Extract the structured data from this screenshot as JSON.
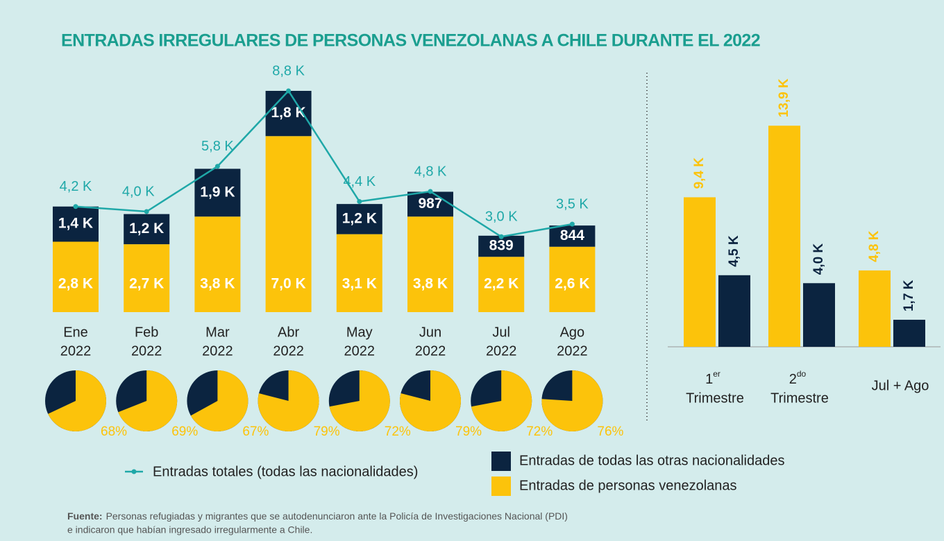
{
  "title": "ENTRADAS IRREGULARES DE PERSONAS VENEZOLANAS A CHILE DURANTE EL 2022",
  "source": {
    "label": "Fuente:",
    "lines": [
      "Personas refugiadas y migrantes que se autodenunciaron ante la Policía de Investigaciones Nacional (PDI)",
      "e indicaron que habían ingresado irregularmente a Chile."
    ]
  },
  "chart_data": [
    {
      "type": "stacked-bar-line",
      "categories": [
        [
          "Ene",
          "2022"
        ],
        [
          "Feb",
          "2022"
        ],
        [
          "Mar",
          "2022"
        ],
        [
          "Abr",
          "2022"
        ],
        [
          "May",
          "2022"
        ],
        [
          "Jun",
          "2022"
        ],
        [
          "Jul",
          "2022"
        ],
        [
          "Ago",
          "2022"
        ]
      ],
      "ylim": [
        0,
        10000
      ],
      "series": [
        {
          "name": "Entradas de personas venezolanas",
          "color": "#fcc30b",
          "values": [
            2800,
            2700,
            3800,
            7000,
            3100,
            3800,
            2200,
            2600
          ],
          "value_labels": [
            "2,8 K",
            "2,7 K",
            "3,8 K",
            "7,0 K",
            "3,1 K",
            "3,8 K",
            "2,2 K",
            "2,6 K"
          ]
        },
        {
          "name": "Entradas de todas las otras nacionalidades",
          "color": "#0b2440",
          "values": [
            1400,
            1200,
            1900,
            1800,
            1200,
            987,
            839,
            844
          ],
          "value_labels": [
            "1,4 K",
            "1,2 K",
            "1,9 K",
            "1,8 K",
            "1,2 K",
            "987",
            "839",
            "844"
          ]
        }
      ],
      "line": {
        "name": "Entradas totales (todas las nacionalidades)",
        "color": "#1fa8a8",
        "values": [
          4200,
          4000,
          5800,
          8800,
          4400,
          4800,
          3000,
          3500
        ],
        "value_labels": [
          "4,2 K",
          "4,0 K",
          "5,8 K",
          "8,8 K",
          "4,4 K",
          "4,8 K",
          "3,0 K",
          "3,5 K"
        ]
      }
    },
    {
      "type": "pie",
      "color": "#fcc30b",
      "rest_color": "#0b2440",
      "values": [
        68,
        69,
        67,
        79,
        72,
        79,
        72,
        76
      ],
      "value_labels": [
        "68%",
        "69%",
        "67%",
        "79%",
        "72%",
        "79%",
        "72%",
        "76%"
      ]
    },
    {
      "type": "bar",
      "categories": [
        [
          "1",
          "er",
          "Trimestre"
        ],
        [
          "2",
          "do",
          "Trimestre"
        ],
        [
          "Jul + Ago"
        ]
      ],
      "ylim": [
        0,
        15000
      ],
      "series": [
        {
          "color": "#fcc30b",
          "values": [
            9400,
            13900,
            4800
          ],
          "value_labels": [
            "9,4 K",
            "13,9 K",
            "4,8 K"
          ]
        },
        {
          "color": "#0b2440",
          "values": [
            4500,
            4000,
            1700
          ],
          "value_labels": [
            "4,5 K",
            "4,0 K",
            "1,7 K"
          ]
        }
      ]
    }
  ]
}
